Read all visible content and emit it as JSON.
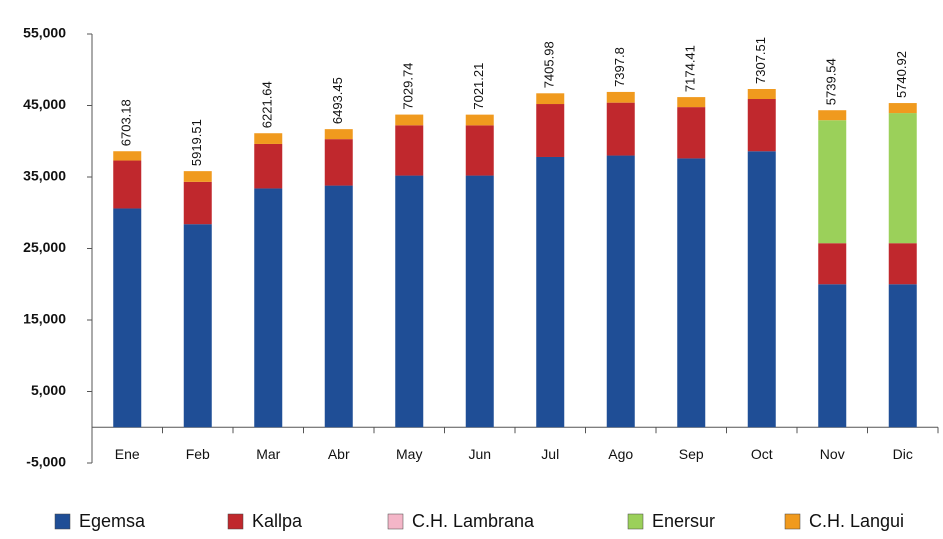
{
  "chart_data": {
    "type": "stacked_bar",
    "categories": [
      "Ene",
      "Feb",
      "Mar",
      "Abr",
      "May",
      "Jun",
      "Jul",
      "Ago",
      "Sep",
      "Oct",
      "Nov",
      "Dic"
    ],
    "series": [
      {
        "name": "Egemsa",
        "color": "#1f4e96",
        "values": [
          30600,
          28400,
          33400,
          33800,
          35200,
          35200,
          37800,
          38000,
          37600,
          38600,
          20000,
          20000
        ]
      },
      {
        "name": "Kallpa",
        "color": "#c0282d",
        "values": [
          6703.18,
          5919.51,
          6221.64,
          6493.45,
          7029.74,
          7021.21,
          7405.98,
          7397.8,
          7174.41,
          7307.51,
          5739.54,
          5740.92
        ]
      },
      {
        "name": "C.H. Lambrana",
        "color": "#f4b6c8",
        "values": [
          0,
          0,
          0,
          0,
          0,
          0,
          0,
          0,
          0,
          0,
          0,
          0
        ]
      },
      {
        "name": "Enersur",
        "color": "#9bd05a",
        "values": [
          0,
          0,
          0,
          0,
          0,
          0,
          0,
          0,
          0,
          0,
          17200,
          18200
        ]
      },
      {
        "name": "C.H. Langui",
        "color": "#f09a1e",
        "values": [
          1300,
          1500,
          1500,
          1400,
          1500,
          1500,
          1500,
          1500,
          1400,
          1400,
          1400,
          1400
        ]
      }
    ],
    "ylim": [
      -5000,
      55000
    ],
    "yticks": [
      {
        "value": -5000,
        "label": "-5,000"
      },
      {
        "value": 5000,
        "label": "5,000"
      },
      {
        "value": 15000,
        "label": "15,000"
      },
      {
        "value": 25000,
        "label": "25,000"
      },
      {
        "value": 35000,
        "label": "35,000"
      },
      {
        "value": 45000,
        "label": "45,000"
      },
      {
        "value": 55000,
        "label": "55,000"
      }
    ],
    "grid": false
  }
}
